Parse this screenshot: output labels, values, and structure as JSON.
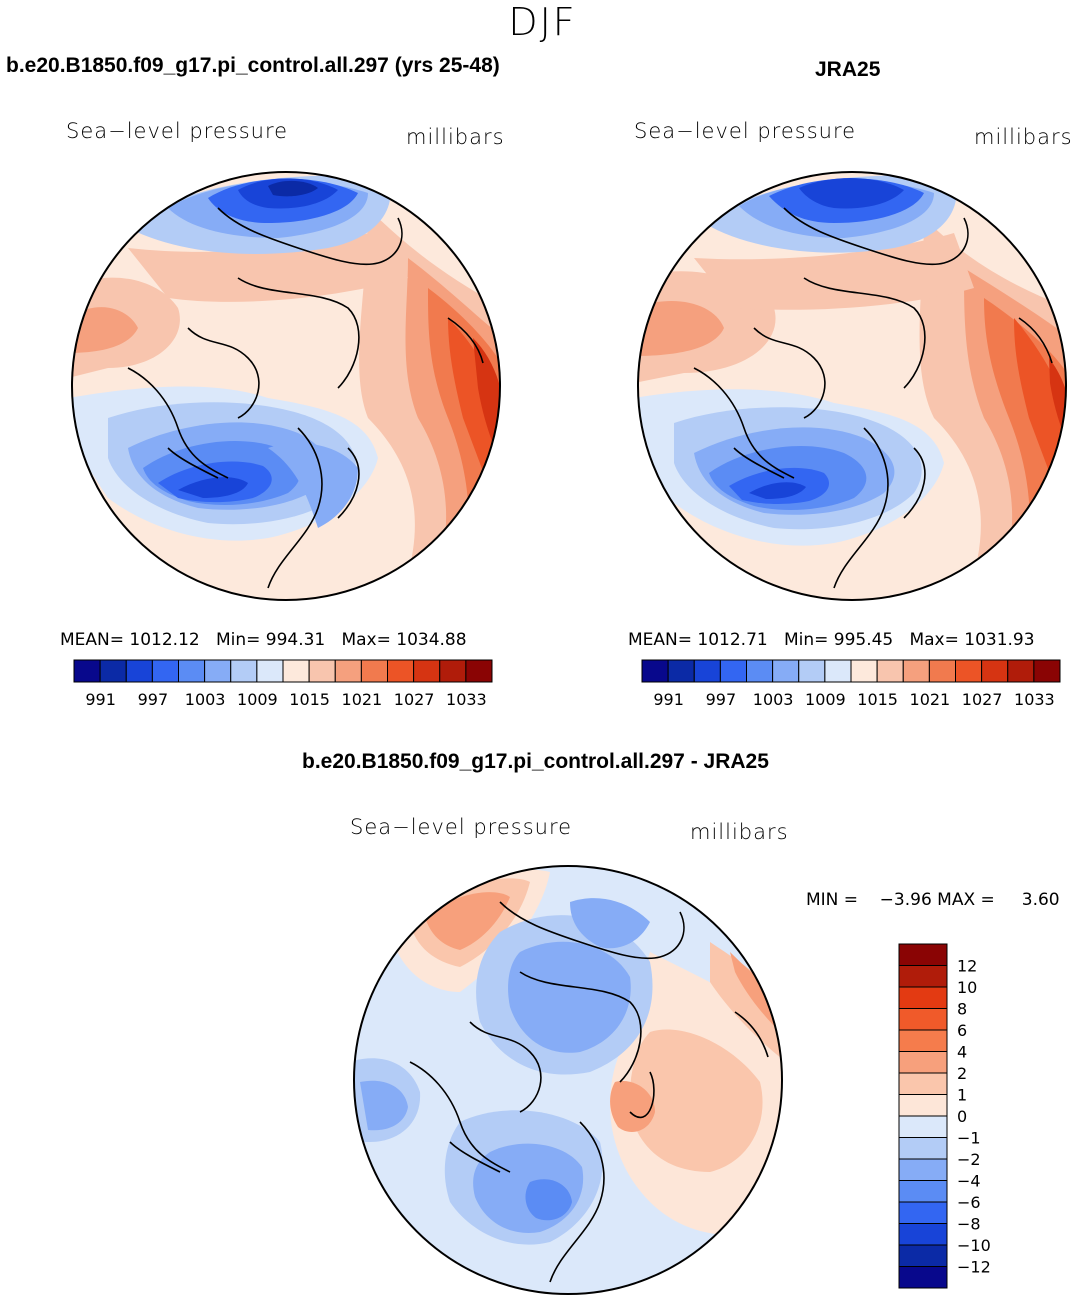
{
  "figure": {
    "season": "DJF"
  },
  "panels": [
    {
      "title": "b.e20.B1850.f09_g17.pi_control.all.297 (yrs 25-48)",
      "left_label": "Sea−level pressure",
      "right_label": "millibars",
      "mean_label": "MEAN=",
      "mean": "1012.12",
      "min_label": "Min=",
      "min": "994.31",
      "max_label": "Max=",
      "max": "1034.88"
    },
    {
      "title": "JRA25",
      "left_label": "Sea−level pressure",
      "right_label": "millibars",
      "mean_label": "MEAN=",
      "mean": "1012.71",
      "min_label": "Min=",
      "min": "995.45",
      "max_label": "Max=",
      "max": "1031.93"
    },
    {
      "title": "b.e20.B1850.f09_g17.pi_control.all.297 - JRA25",
      "left_label": "Sea−level pressure",
      "right_label": "millibars",
      "minmax_text": "MIN =    −3.96 MAX =     3.60"
    }
  ],
  "colorbar_main": {
    "colors": [
      "#08088c",
      "#0b2aa6",
      "#1844d8",
      "#3366f2",
      "#5b8cf4",
      "#86acf6",
      "#b3ccf6",
      "#dbe8fa",
      "#fde9dc",
      "#f8c5ae",
      "#f5a07e",
      "#f17a4e",
      "#ec5426",
      "#d63412",
      "#b01c0a",
      "#8a0404"
    ],
    "tick_labels": [
      "991",
      "997",
      "1003",
      "1009",
      "1015",
      "1021",
      "1027",
      "1033"
    ]
  },
  "colorbar_diff": {
    "colors": [
      "#8a0404",
      "#b01c0a",
      "#e33a12",
      "#f05a2a",
      "#f57c4c",
      "#f7a07c",
      "#fac6ac",
      "#fde6d8",
      "#dbe8fa",
      "#b3ccf6",
      "#86acf6",
      "#5b8cf4",
      "#3366f2",
      "#1844d8",
      "#0b2aa6",
      "#08088c"
    ],
    "tick_labels": [
      "12",
      "10",
      "8",
      "6",
      "4",
      "2",
      "1",
      "0",
      "−1",
      "−2",
      "−4",
      "−6",
      "−8",
      "−10",
      "−12"
    ]
  }
}
